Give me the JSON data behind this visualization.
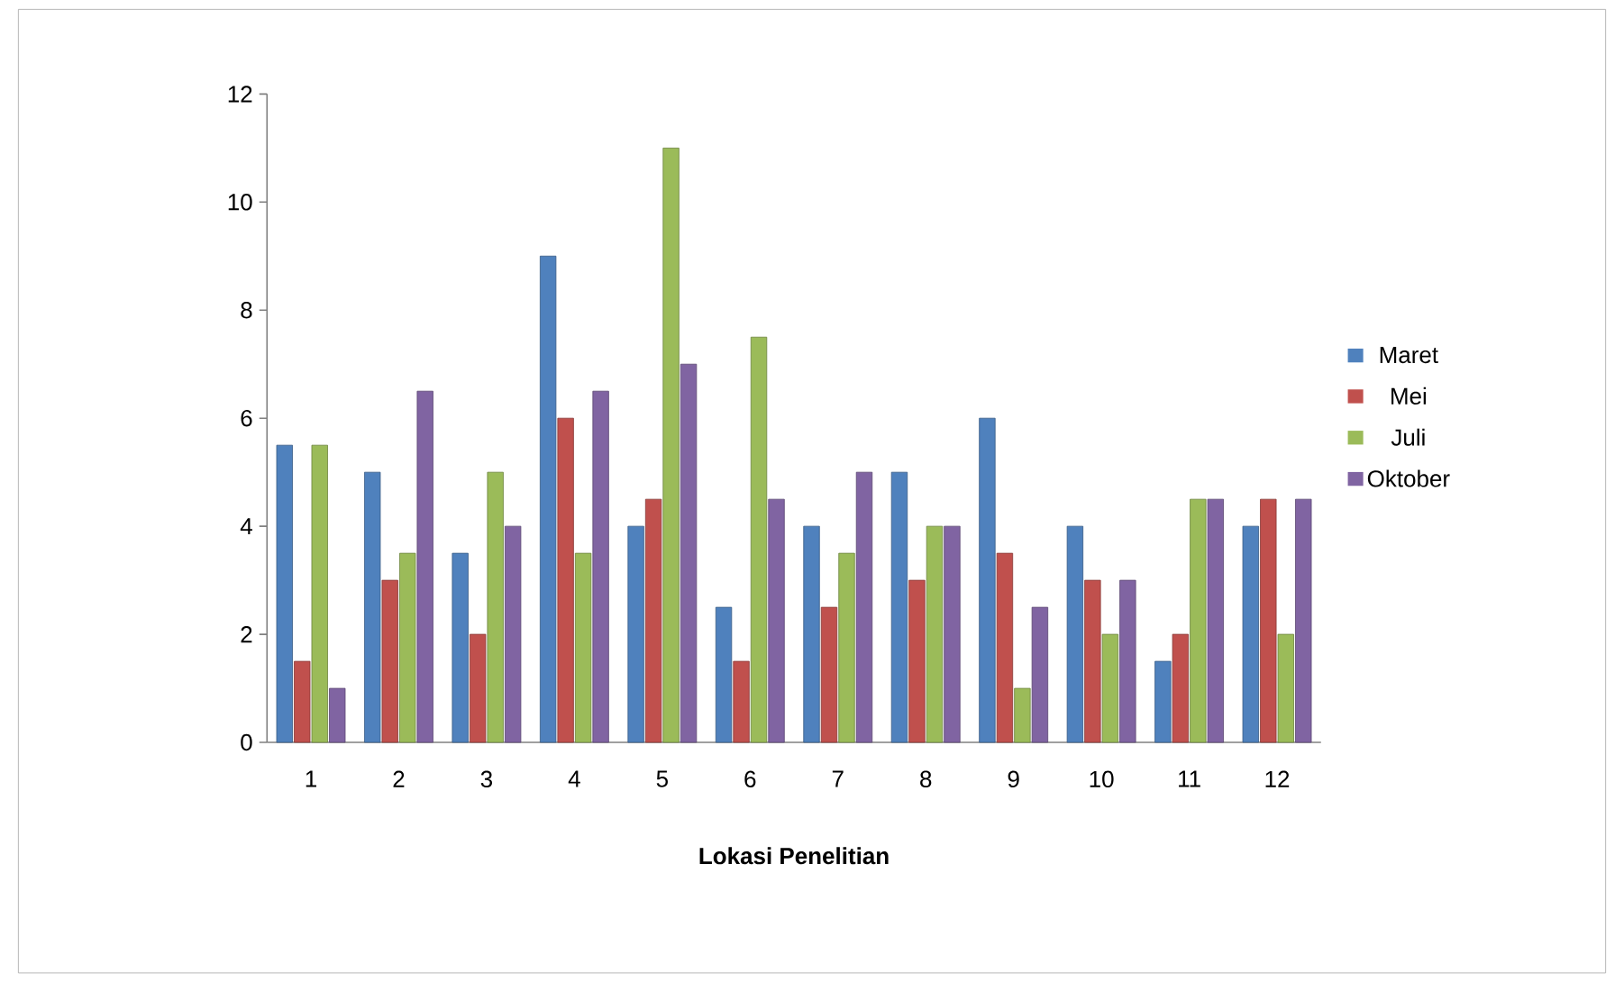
{
  "chart_data": {
    "type": "bar",
    "xlabel": "Lokasi Penelitian",
    "categories": [
      "1",
      "2",
      "3",
      "4",
      "5",
      "6",
      "7",
      "8",
      "9",
      "10",
      "11",
      "12"
    ],
    "series": [
      {
        "name": "Maret",
        "color": "#4f81bd",
        "values": [
          5.5,
          5,
          3.5,
          9,
          4,
          2.5,
          4,
          5,
          6,
          4,
          1.5,
          4
        ]
      },
      {
        "name": "Mei",
        "color": "#c0504d",
        "values": [
          1.5,
          3,
          2,
          6,
          4.5,
          1.5,
          2.5,
          3,
          3.5,
          3,
          2,
          4.5
        ]
      },
      {
        "name": "Juli",
        "color": "#9bbb59",
        "values": [
          5.5,
          3.5,
          5,
          3.5,
          11,
          7.5,
          3.5,
          4,
          1,
          2,
          4.5,
          2
        ]
      },
      {
        "name": "Oktober",
        "color": "#8064a2",
        "values": [
          1,
          6.5,
          4,
          6.5,
          7,
          4.5,
          5,
          4,
          2.5,
          3,
          4.5,
          4.5
        ]
      }
    ],
    "ylim": [
      0,
      12
    ],
    "yticks": [
      0,
      2,
      4,
      6,
      8,
      10,
      12
    ],
    "grid": false,
    "legend": "right"
  }
}
